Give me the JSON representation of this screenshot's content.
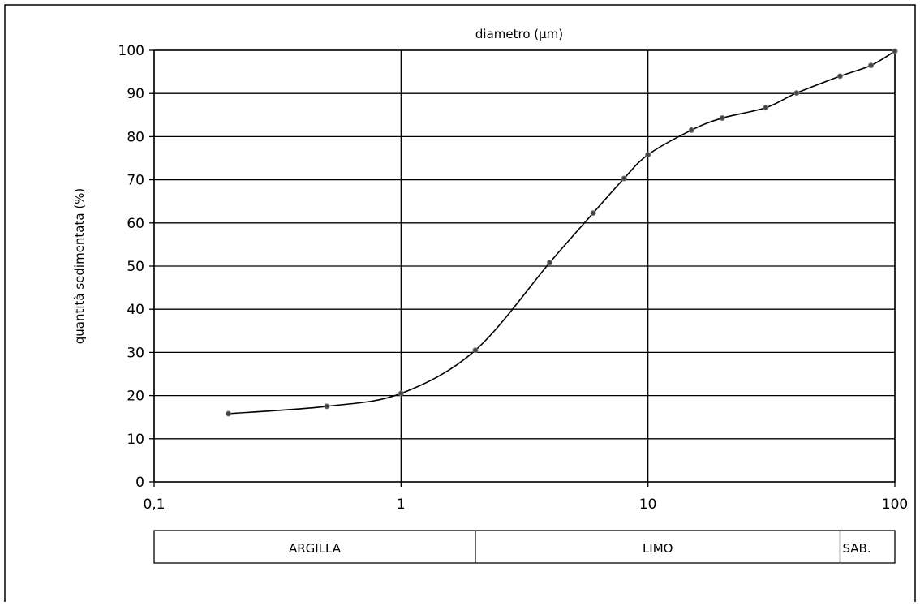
{
  "chart_data": {
    "type": "line",
    "title": "",
    "xlabel": "diametro (µm)",
    "ylabel": "quantità sedimentata (%)",
    "x_scale": "log",
    "xlim": [
      0.1,
      100
    ],
    "ylim": [
      0,
      100
    ],
    "x_ticks": [
      "0,1",
      "1",
      "10",
      "100"
    ],
    "y_ticks": [
      "0",
      "10",
      "20",
      "30",
      "40",
      "50",
      "60",
      "70",
      "80",
      "90",
      "100"
    ],
    "grid": true,
    "legend": "none",
    "series": [
      {
        "x": [
          0.2,
          0.5,
          1,
          2,
          4,
          6,
          8,
          10,
          15,
          20,
          30,
          40,
          60,
          80,
          100
        ],
        "y": [
          15.8,
          17.5,
          20.5,
          30.5,
          50.8,
          62.3,
          70.3,
          75.8,
          81.5,
          84.3,
          86.7,
          90.1,
          94.0,
          96.5,
          99.8
        ]
      }
    ],
    "bands": [
      {
        "label": "ARGILLA",
        "from": 0.1,
        "to": 2
      },
      {
        "label": "LIMO",
        "from": 2,
        "to": 60
      },
      {
        "label": "SAB.",
        "from": 60,
        "to": 100
      }
    ]
  }
}
